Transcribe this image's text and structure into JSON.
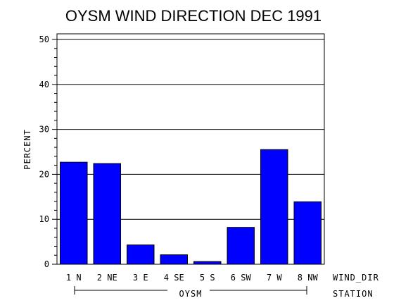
{
  "chart_data": {
    "type": "bar",
    "title": "OYSM WIND DIRECTION DEC 1991",
    "ylabel": "PERCENT",
    "xlabel": "WIND_DIR",
    "group_axis_label": "STATION",
    "group_label": "OYSM",
    "categories": [
      "1 N",
      "2 NE",
      "3 E",
      "4 SE",
      "5 S",
      "6 SW",
      "7 W",
      "8 NW"
    ],
    "values": [
      22.7,
      22.4,
      4.3,
      2.1,
      0.6,
      8.2,
      25.5,
      13.9
    ],
    "ylim": [
      0,
      50
    ],
    "yticks": [
      0,
      10,
      20,
      30,
      40,
      50
    ],
    "grid": true,
    "bar_color": "#0000ff"
  }
}
